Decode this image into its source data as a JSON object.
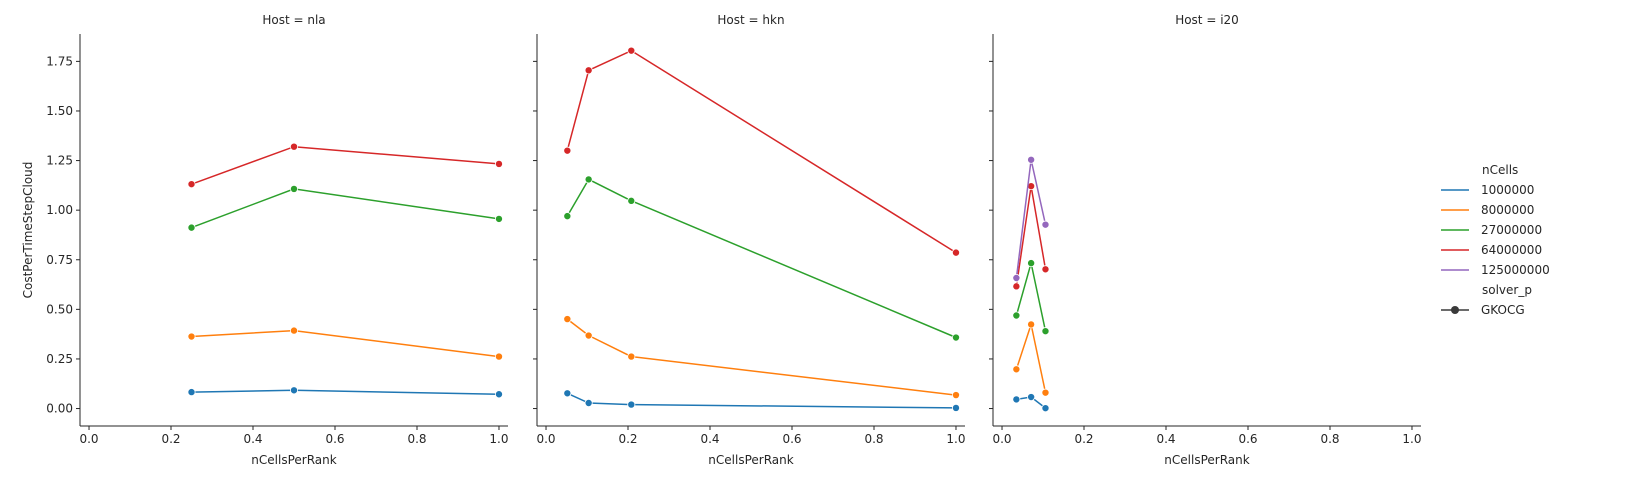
{
  "chart_data": {
    "type": "line",
    "facet_title_prefix": "Host = ",
    "facets": [
      "nla",
      "hkn",
      "i20"
    ],
    "xlabel": "nCellsPerRank",
    "ylabel": "CostPerTimeStepCloud",
    "xlim": [
      0.0,
      1.0
    ],
    "ylim": [
      0.0,
      1.75
    ],
    "x_ticks": [
      "0.0",
      "0.2",
      "0.4",
      "0.6",
      "0.8",
      "1.0"
    ],
    "y_ticks": [
      "0.00",
      "0.25",
      "0.50",
      "0.75",
      "1.00",
      "1.25",
      "1.50",
      "1.75"
    ],
    "legend": {
      "placement": "right",
      "hue_title": "nCells",
      "style_title": "solver_p",
      "style_entries": [
        "GKOCG"
      ]
    },
    "series": [
      {
        "name": "1000000",
        "color": "#1f77b4",
        "data": {
          "nla": [
            [
              0.25,
              0.083
            ],
            [
              0.5,
              0.092
            ],
            [
              1.0,
              0.072
            ]
          ],
          "hkn": [
            [
              0.052,
              0.077
            ],
            [
              0.104,
              0.028
            ],
            [
              0.208,
              0.02
            ],
            [
              1.0,
              0.003
            ]
          ],
          "i20": [
            [
              0.035,
              0.046
            ],
            [
              0.071,
              0.058
            ],
            [
              0.106,
              0.002
            ]
          ]
        }
      },
      {
        "name": "8000000",
        "color": "#ff7f0e",
        "data": {
          "nla": [
            [
              0.25,
              0.363
            ],
            [
              0.5,
              0.393
            ],
            [
              1.0,
              0.262
            ]
          ],
          "hkn": [
            [
              0.052,
              0.451
            ],
            [
              0.104,
              0.368
            ],
            [
              0.208,
              0.262
            ],
            [
              1.0,
              0.068
            ]
          ],
          "i20": [
            [
              0.035,
              0.198
            ],
            [
              0.071,
              0.424
            ],
            [
              0.106,
              0.08
            ]
          ]
        }
      },
      {
        "name": "27000000",
        "color": "#2ca02c",
        "data": {
          "nla": [
            [
              0.25,
              0.912
            ],
            [
              0.5,
              1.107
            ],
            [
              1.0,
              0.956
            ]
          ],
          "hkn": [
            [
              0.052,
              0.97
            ],
            [
              0.104,
              1.155
            ],
            [
              0.208,
              1.047
            ],
            [
              1.0,
              0.358
            ]
          ],
          "i20": [
            [
              0.035,
              0.469
            ],
            [
              0.071,
              0.733
            ],
            [
              0.106,
              0.39
            ]
          ]
        }
      },
      {
        "name": "64000000",
        "color": "#d62728",
        "data": {
          "nla": [
            [
              0.25,
              1.131
            ],
            [
              0.5,
              1.32
            ],
            [
              1.0,
              1.233
            ]
          ],
          "hkn": [
            [
              0.052,
              1.3
            ],
            [
              0.104,
              1.705
            ],
            [
              0.208,
              1.804
            ],
            [
              1.0,
              0.786
            ]
          ],
          "i20": [
            [
              0.035,
              0.616
            ],
            [
              0.071,
              1.121
            ],
            [
              0.106,
              0.702
            ]
          ]
        }
      },
      {
        "name": "125000000",
        "color": "#9467bd",
        "data": {
          "nla": [],
          "hkn": [],
          "i20": [
            [
              0.035,
              0.658
            ],
            [
              0.071,
              1.254
            ],
            [
              0.106,
              0.927
            ]
          ]
        }
      }
    ]
  }
}
